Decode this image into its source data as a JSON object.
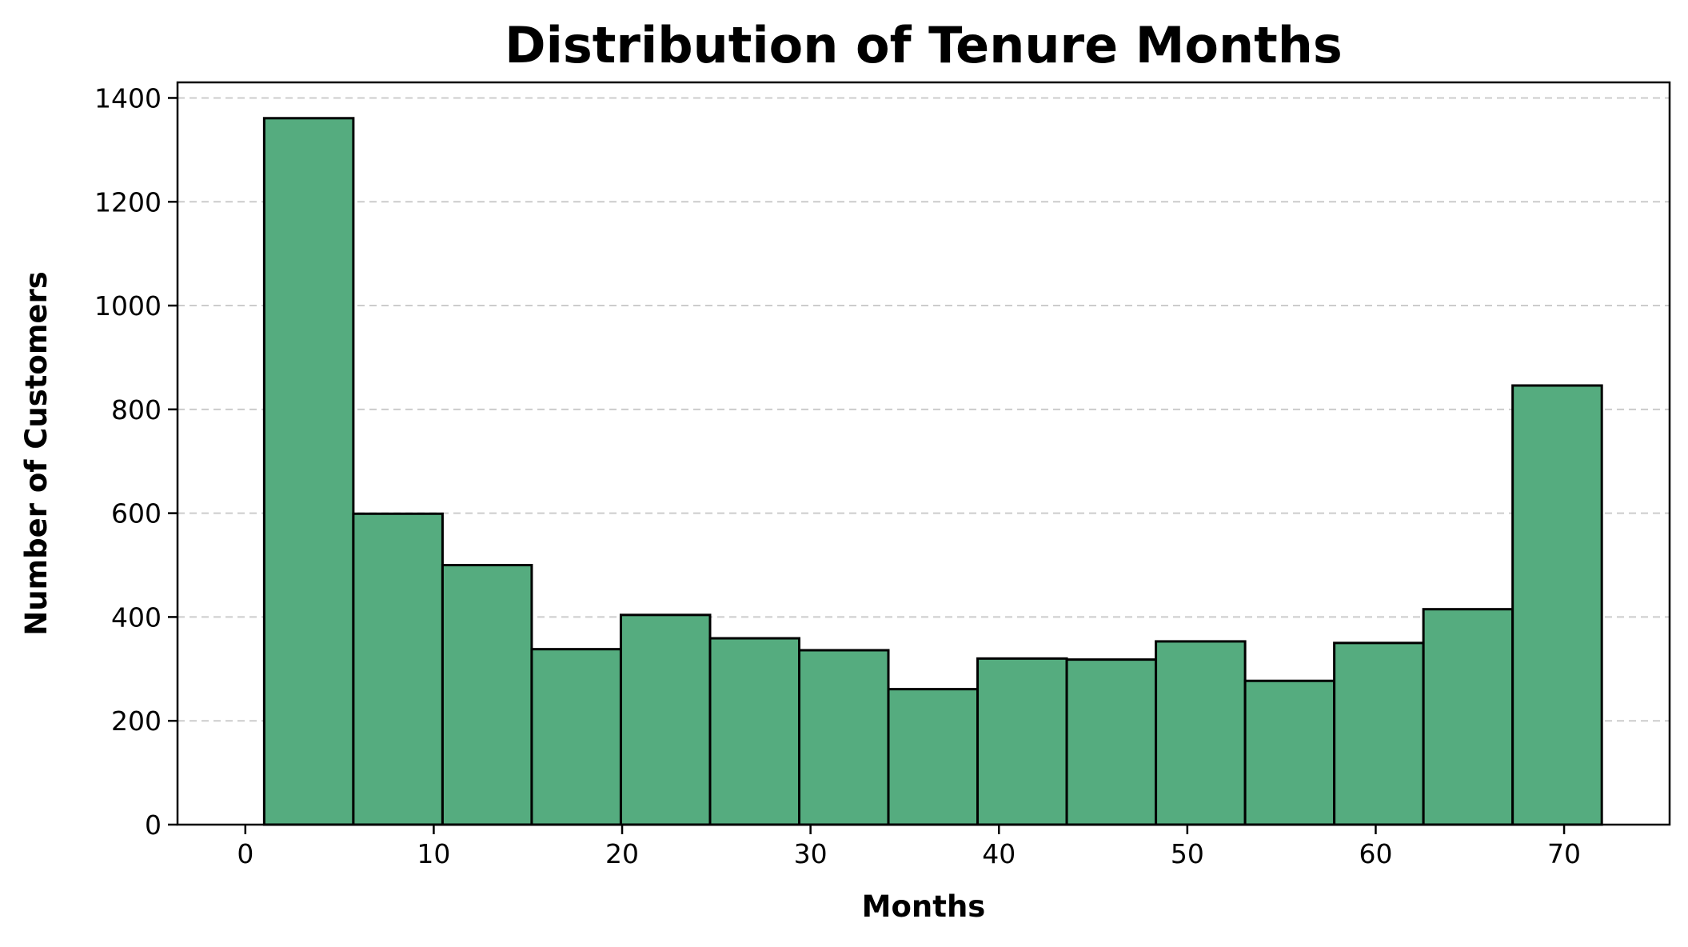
{
  "chart_data": {
    "type": "bar",
    "subtype": "histogram",
    "title": "Distribution of Tenure Months",
    "xlabel": "Months",
    "ylabel": "Number of Customers",
    "xlim": [
      -3.6,
      75.6
    ],
    "ylim": [
      0,
      1430
    ],
    "bin_edges": [
      1,
      5.733,
      10.467,
      15.2,
      19.933,
      24.667,
      29.4,
      34.133,
      38.867,
      43.6,
      48.333,
      53.067,
      57.8,
      62.533,
      67.267,
      72
    ],
    "values": [
      1361,
      599,
      500,
      338,
      404,
      359,
      336,
      261,
      320,
      318,
      353,
      277,
      350,
      415,
      846
    ],
    "x_ticks": [
      0,
      10,
      20,
      30,
      40,
      50,
      60,
      70
    ],
    "y_ticks": [
      0,
      200,
      400,
      600,
      800,
      1000,
      1200,
      1400
    ],
    "grid": "y-dashed",
    "bar_color": "#55ac7f",
    "edge_color": "#000000"
  }
}
